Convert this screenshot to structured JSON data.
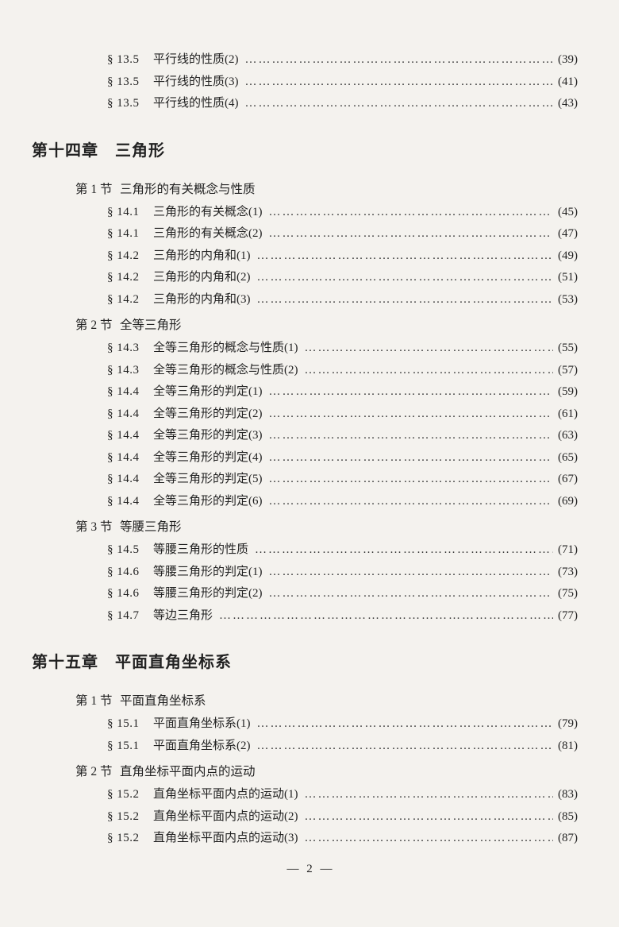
{
  "intro_entries": [
    {
      "sec": "§ 13.5",
      "title": "平行线的性质(2)",
      "page": "(39)"
    },
    {
      "sec": "§ 13.5",
      "title": "平行线的性质(3)",
      "page": "(41)"
    },
    {
      "sec": "§ 13.5",
      "title": "平行线的性质(4)",
      "page": "(43)"
    }
  ],
  "chapter14": {
    "heading": "第十四章　三角形",
    "sections": [
      {
        "label": "第 1 节",
        "title": "三角形的有关概念与性质",
        "entries": [
          {
            "sec": "§ 14.1",
            "title": "三角形的有关概念(1)",
            "page": "(45)"
          },
          {
            "sec": "§ 14.1",
            "title": "三角形的有关概念(2)",
            "page": "(47)"
          },
          {
            "sec": "§ 14.2",
            "title": "三角形的内角和(1)",
            "page": "(49)"
          },
          {
            "sec": "§ 14.2",
            "title": "三角形的内角和(2)",
            "page": "(51)"
          },
          {
            "sec": "§ 14.2",
            "title": "三角形的内角和(3)",
            "page": "(53)"
          }
        ]
      },
      {
        "label": "第 2 节",
        "title": "全等三角形",
        "entries": [
          {
            "sec": "§ 14.3",
            "title": "全等三角形的概念与性质(1)",
            "page": "(55)"
          },
          {
            "sec": "§ 14.3",
            "title": "全等三角形的概念与性质(2)",
            "page": "(57)"
          },
          {
            "sec": "§ 14.4",
            "title": "全等三角形的判定(1)",
            "page": "(59)"
          },
          {
            "sec": "§ 14.4",
            "title": "全等三角形的判定(2)",
            "page": "(61)"
          },
          {
            "sec": "§ 14.4",
            "title": "全等三角形的判定(3)",
            "page": "(63)"
          },
          {
            "sec": "§ 14.4",
            "title": "全等三角形的判定(4)",
            "page": "(65)"
          },
          {
            "sec": "§ 14.4",
            "title": "全等三角形的判定(5)",
            "page": "(67)"
          },
          {
            "sec": "§ 14.4",
            "title": "全等三角形的判定(6)",
            "page": "(69)"
          }
        ]
      },
      {
        "label": "第 3 节",
        "title": "等腰三角形",
        "entries": [
          {
            "sec": "§ 14.5",
            "title": "等腰三角形的性质",
            "page": "(71)"
          },
          {
            "sec": "§ 14.6",
            "title": "等腰三角形的判定(1)",
            "page": "(73)"
          },
          {
            "sec": "§ 14.6",
            "title": "等腰三角形的判定(2)",
            "page": "(75)"
          },
          {
            "sec": "§ 14.7",
            "title": "等边三角形",
            "page": "(77)"
          }
        ]
      }
    ]
  },
  "chapter15": {
    "heading": "第十五章　平面直角坐标系",
    "sections": [
      {
        "label": "第 1 节",
        "title": "平面直角坐标系",
        "entries": [
          {
            "sec": "§ 15.1",
            "title": "平面直角坐标系(1)",
            "page": "(79)"
          },
          {
            "sec": "§ 15.1",
            "title": "平面直角坐标系(2)",
            "page": "(81)"
          }
        ]
      },
      {
        "label": "第 2 节",
        "title": "直角坐标平面内点的运动",
        "entries": [
          {
            "sec": "§ 15.2",
            "title": "直角坐标平面内点的运动(1)",
            "page": "(83)"
          },
          {
            "sec": "§ 15.2",
            "title": "直角坐标平面内点的运动(2)",
            "page": "(85)"
          },
          {
            "sec": "§ 15.2",
            "title": "直角坐标平面内点的运动(3)",
            "page": "(87)"
          }
        ]
      }
    ]
  },
  "page_number": "2"
}
